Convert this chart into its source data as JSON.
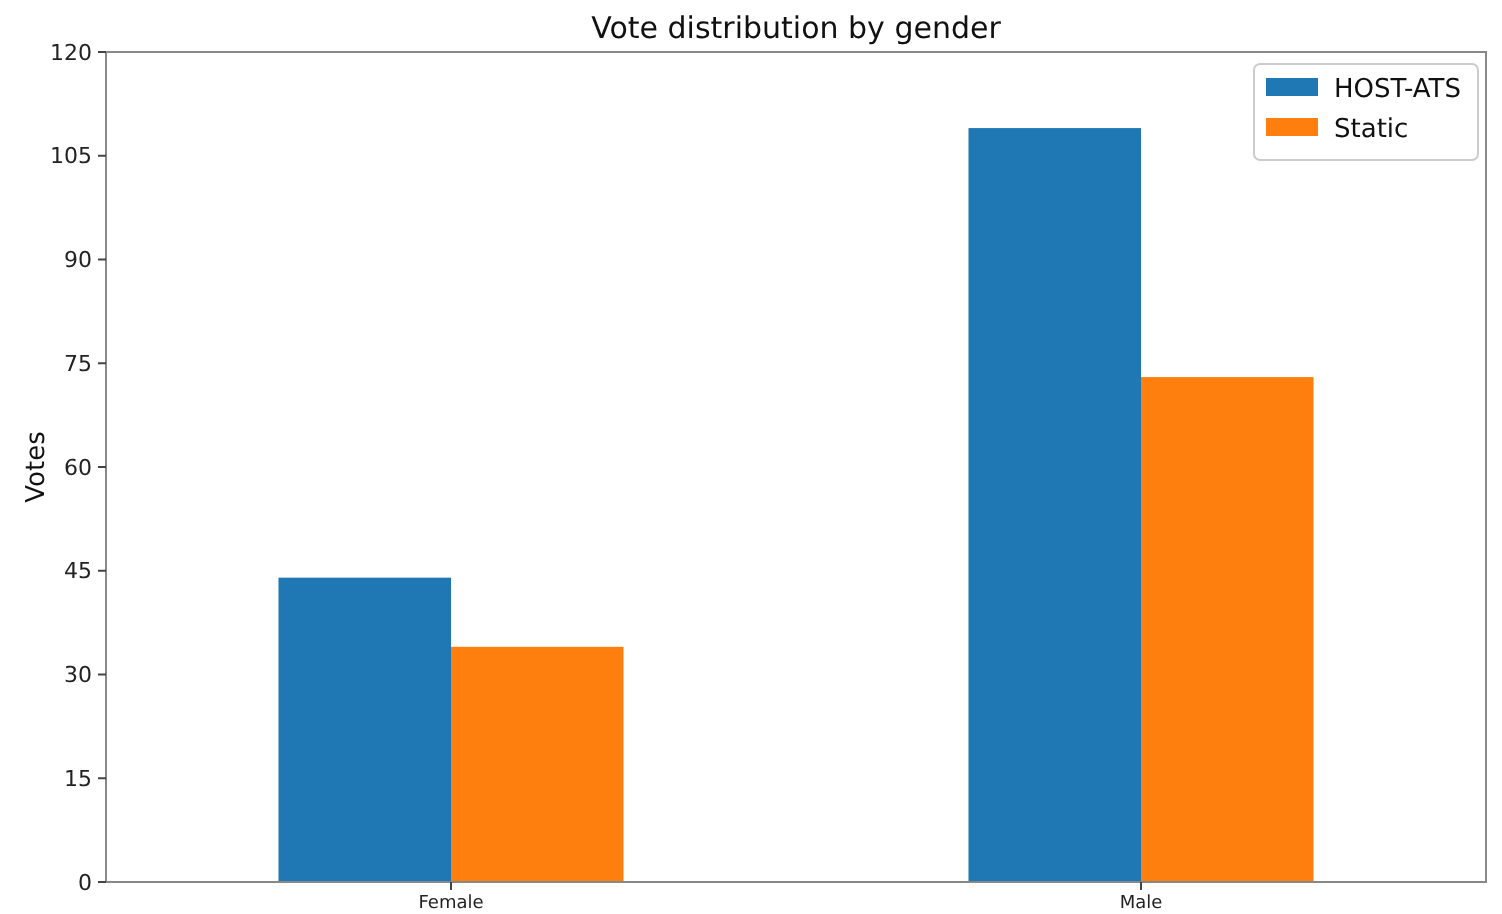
{
  "chart_data": {
    "type": "bar",
    "title": "Vote distribution by gender",
    "ylabel": "Votes",
    "categories": [
      "Female",
      "Male"
    ],
    "series": [
      {
        "name": "HOST-ATS",
        "color": "#1f77b4",
        "values": [
          44,
          109
        ]
      },
      {
        "name": "Static",
        "color": "#ff7f0e",
        "values": [
          34,
          73
        ]
      }
    ],
    "ylim": [
      0,
      120
    ],
    "yticks": [
      0,
      15,
      30,
      45,
      60,
      75,
      90,
      105,
      120
    ],
    "legend": "top right"
  }
}
